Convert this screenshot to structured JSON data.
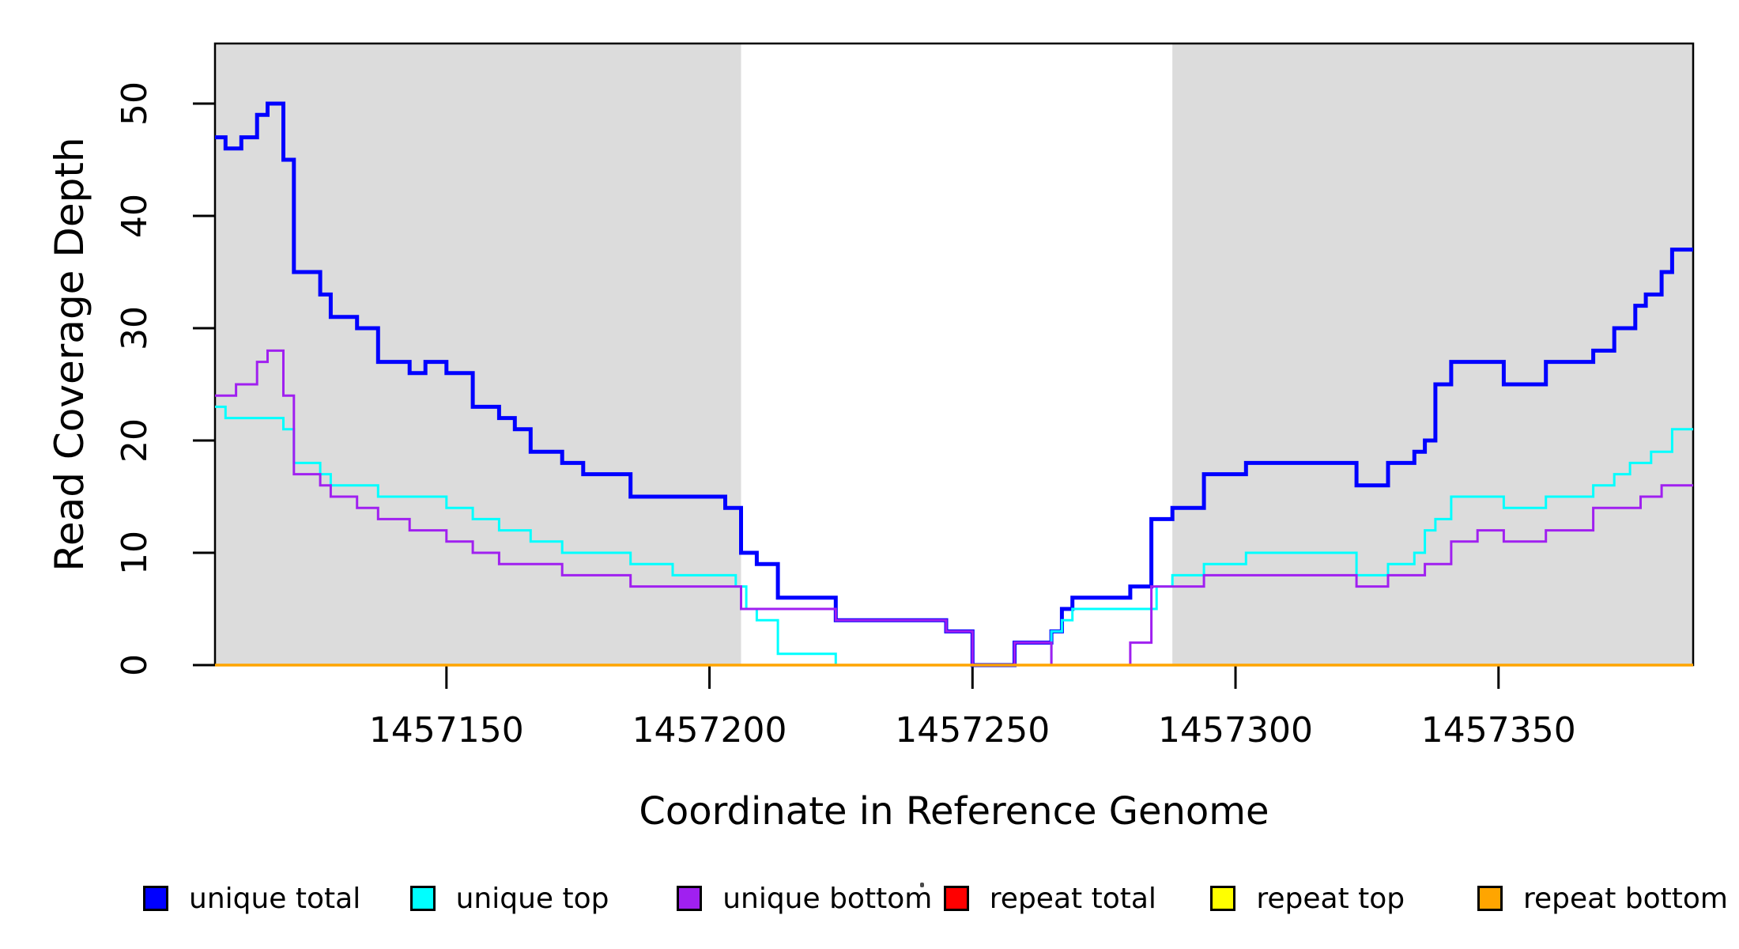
{
  "chart_data": {
    "type": "line",
    "subtype": "step-after",
    "title": "",
    "xlabel": "Coordinate in Reference Genome",
    "ylabel": "Read Coverage Depth",
    "xlim": [
      1457106,
      1457387
    ],
    "ylim": [
      0,
      55
    ],
    "x_ticks": [
      1457150,
      1457200,
      1457250,
      1457300,
      1457350
    ],
    "y_ticks": [
      0,
      10,
      20,
      30,
      40,
      50
    ],
    "grid": false,
    "legend_position": "bottom",
    "plot_background": "#ffffff",
    "masked_region_color": "#DCDCDC",
    "masked_regions": [
      {
        "x0": 1457106,
        "x1": 1457206
      },
      {
        "x0": 1457288,
        "x1": 1457387
      }
    ],
    "series": [
      {
        "name": "unique total",
        "color": "#0000FF",
        "width": 5,
        "steps": [
          [
            1457106,
            47
          ],
          [
            1457108,
            46
          ],
          [
            1457111,
            47
          ],
          [
            1457114,
            49
          ],
          [
            1457116,
            50
          ],
          [
            1457119,
            45
          ],
          [
            1457121,
            35
          ],
          [
            1457126,
            33
          ],
          [
            1457128,
            31
          ],
          [
            1457133,
            30
          ],
          [
            1457137,
            27
          ],
          [
            1457143,
            26
          ],
          [
            1457146,
            27
          ],
          [
            1457150,
            26
          ],
          [
            1457155,
            23
          ],
          [
            1457160,
            22
          ],
          [
            1457163,
            21
          ],
          [
            1457166,
            19
          ],
          [
            1457172,
            18
          ],
          [
            1457176,
            17
          ],
          [
            1457185,
            15
          ],
          [
            1457203,
            14
          ],
          [
            1457206,
            10
          ],
          [
            1457209,
            9
          ],
          [
            1457213,
            6
          ],
          [
            1457224,
            4
          ],
          [
            1457245,
            3
          ],
          [
            1457250,
            0
          ],
          [
            1457258,
            2
          ],
          [
            1457265,
            3
          ],
          [
            1457267,
            5
          ],
          [
            1457269,
            6
          ],
          [
            1457280,
            7
          ],
          [
            1457284,
            13
          ],
          [
            1457288,
            14
          ],
          [
            1457294,
            17
          ],
          [
            1457302,
            18
          ],
          [
            1457323,
            16
          ],
          [
            1457329,
            18
          ],
          [
            1457334,
            19
          ],
          [
            1457336,
            20
          ],
          [
            1457338,
            25
          ],
          [
            1457341,
            27
          ],
          [
            1457351,
            25
          ],
          [
            1457359,
            27
          ],
          [
            1457368,
            28
          ],
          [
            1457372,
            30
          ],
          [
            1457376,
            32
          ],
          [
            1457378,
            33
          ],
          [
            1457381,
            35
          ],
          [
            1457383,
            37
          ]
        ]
      },
      {
        "name": "unique top",
        "color": "#00FFFF",
        "width": 3,
        "steps": [
          [
            1457106,
            23
          ],
          [
            1457108,
            22
          ],
          [
            1457119,
            21
          ],
          [
            1457121,
            18
          ],
          [
            1457126,
            17
          ],
          [
            1457128,
            16
          ],
          [
            1457137,
            15
          ],
          [
            1457150,
            14
          ],
          [
            1457155,
            13
          ],
          [
            1457160,
            12
          ],
          [
            1457166,
            11
          ],
          [
            1457172,
            10
          ],
          [
            1457185,
            9
          ],
          [
            1457193,
            8
          ],
          [
            1457205,
            7
          ],
          [
            1457207,
            5
          ],
          [
            1457209,
            4
          ],
          [
            1457213,
            1
          ],
          [
            1457224,
            0
          ],
          [
            1457265,
            3
          ],
          [
            1457267,
            4
          ],
          [
            1457269,
            5
          ],
          [
            1457285,
            7
          ],
          [
            1457288,
            8
          ],
          [
            1457294,
            9
          ],
          [
            1457302,
            10
          ],
          [
            1457323,
            8
          ],
          [
            1457329,
            9
          ],
          [
            1457334,
            10
          ],
          [
            1457336,
            12
          ],
          [
            1457338,
            13
          ],
          [
            1457341,
            15
          ],
          [
            1457351,
            14
          ],
          [
            1457359,
            15
          ],
          [
            1457368,
            16
          ],
          [
            1457372,
            17
          ],
          [
            1457375,
            18
          ],
          [
            1457379,
            19
          ],
          [
            1457383,
            21
          ]
        ]
      },
      {
        "name": "unique bottom",
        "color": "#A020F0",
        "width": 3,
        "steps": [
          [
            1457106,
            24
          ],
          [
            1457110,
            25
          ],
          [
            1457114,
            27
          ],
          [
            1457116,
            28
          ],
          [
            1457119,
            24
          ],
          [
            1457121,
            17
          ],
          [
            1457126,
            16
          ],
          [
            1457128,
            15
          ],
          [
            1457133,
            14
          ],
          [
            1457137,
            13
          ],
          [
            1457143,
            12
          ],
          [
            1457150,
            11
          ],
          [
            1457155,
            10
          ],
          [
            1457160,
            9
          ],
          [
            1457172,
            8
          ],
          [
            1457185,
            7
          ],
          [
            1457206,
            5
          ],
          [
            1457224,
            4
          ],
          [
            1457245,
            3
          ],
          [
            1457250,
            0
          ],
          [
            1457258,
            2
          ],
          [
            1457265,
            0
          ],
          [
            1457280,
            2
          ],
          [
            1457284,
            7
          ],
          [
            1457294,
            8
          ],
          [
            1457323,
            7
          ],
          [
            1457329,
            8
          ],
          [
            1457336,
            9
          ],
          [
            1457341,
            11
          ],
          [
            1457346,
            12
          ],
          [
            1457351,
            11
          ],
          [
            1457359,
            12
          ],
          [
            1457368,
            14
          ],
          [
            1457377,
            15
          ],
          [
            1457381,
            16
          ]
        ]
      },
      {
        "name": "repeat total",
        "color": "#FF0000",
        "width": 3,
        "steps": [
          [
            1457106,
            0
          ]
        ]
      },
      {
        "name": "repeat top",
        "color": "#FFFF00",
        "width": 3,
        "steps": [
          [
            1457106,
            0
          ]
        ]
      },
      {
        "name": "repeat bottom",
        "color": "#FFA500",
        "width": 3.5,
        "steps": [
          [
            1457106,
            0
          ]
        ]
      }
    ],
    "legend": [
      {
        "label": "unique total",
        "color": "#0000FF"
      },
      {
        "label": "unique top",
        "color": "#00FFFF"
      },
      {
        "label": "unique bottom",
        "color": "#A020F0"
      },
      {
        "label": "repeat total",
        "color": "#FF0000"
      },
      {
        "label": "repeat top",
        "color": "#FFFF00"
      },
      {
        "label": "repeat bottom",
        "color": "#FFA500"
      }
    ]
  }
}
